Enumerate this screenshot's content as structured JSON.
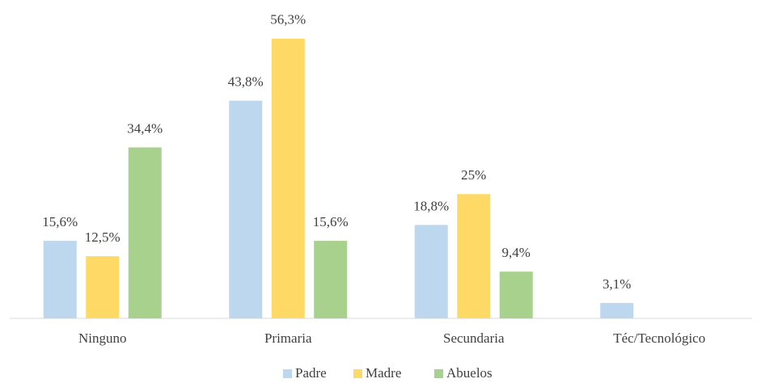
{
  "chart_data": {
    "type": "bar",
    "categories": [
      "Ninguno",
      "Primaria",
      "Secundaria",
      "Téc/Tecnológico"
    ],
    "series": [
      {
        "name": "Padre",
        "color": "#bdd7ee",
        "values": [
          15.6,
          43.8,
          18.8,
          3.1
        ],
        "value_labels": [
          "15,6%",
          "43,8%",
          "18,8%",
          "3,1%"
        ]
      },
      {
        "name": "Madre",
        "color": "#ffd966",
        "values": [
          12.5,
          56.3,
          25,
          0
        ],
        "value_labels": [
          "12,5%",
          "56,3%",
          "25%",
          null
        ]
      },
      {
        "name": "Abuelos",
        "color": "#a9d18e",
        "values": [
          34.4,
          15.6,
          9.4,
          0
        ],
        "value_labels": [
          "34,4%",
          "15,6%",
          "9,4%",
          null
        ]
      }
    ],
    "legend": "bottom"
  }
}
